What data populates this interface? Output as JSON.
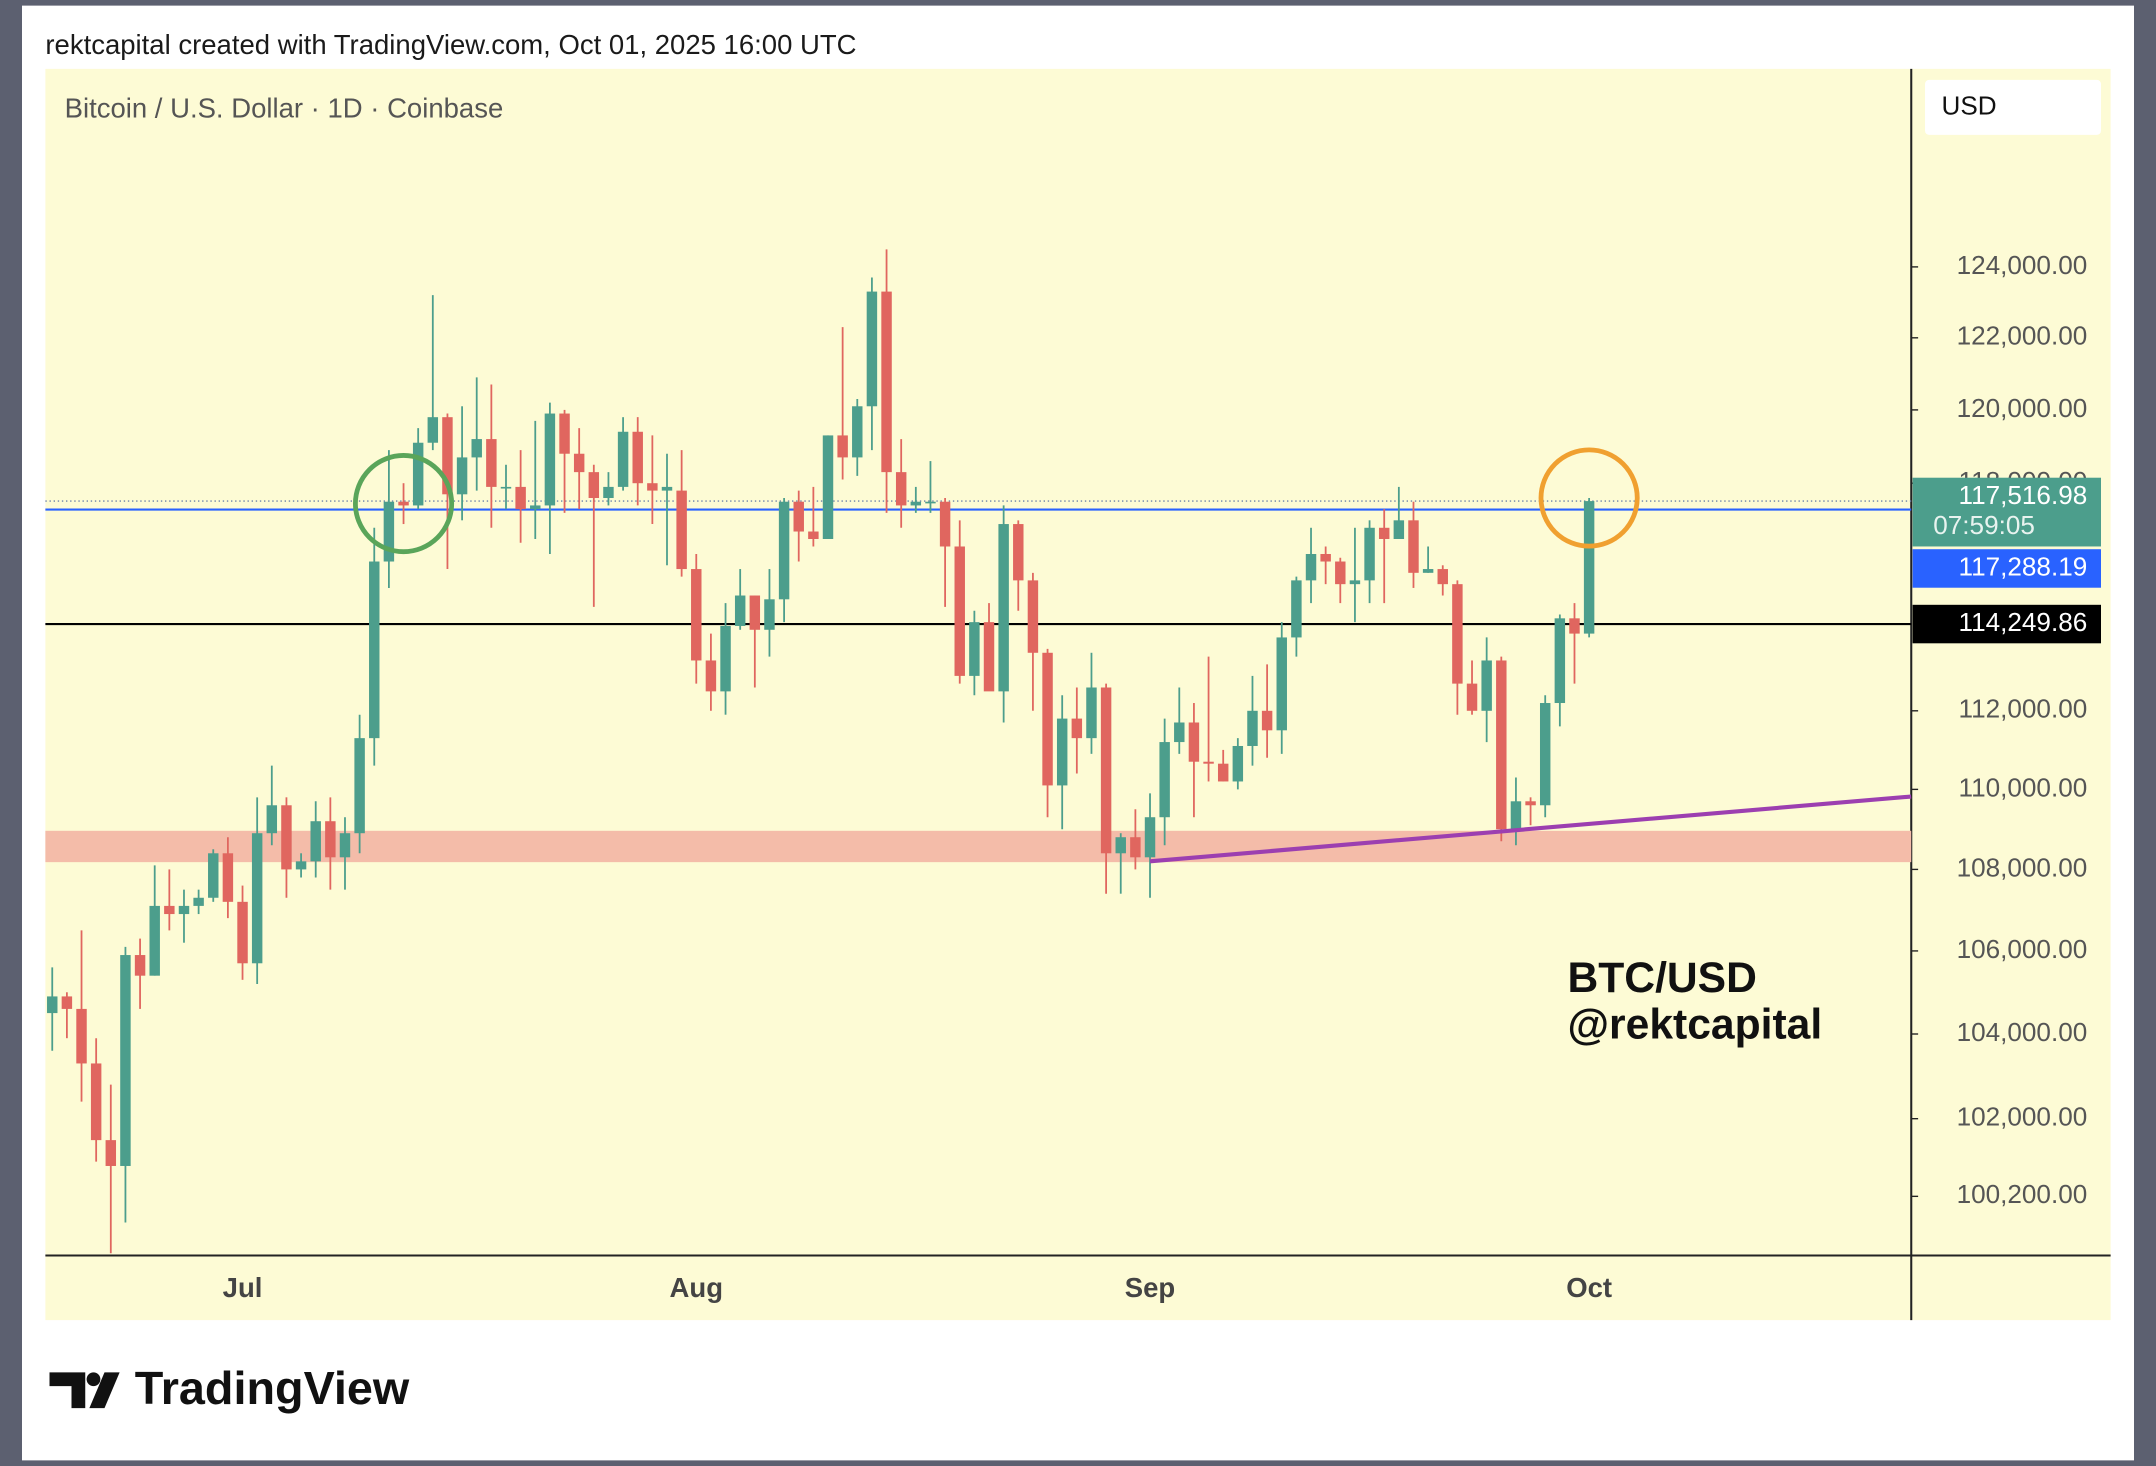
{
  "header": "rektcapital created with TradingView.com, Oct 01, 2025 16:00 UTC",
  "chart_data": {
    "type": "candlestick",
    "title": "Bitcoin / U.S. Dollar · 1D · Coinbase",
    "currency": "USD",
    "watermark": [
      "BTC/USD",
      "@rektcapital"
    ],
    "categories": [
      null,
      null,
      null,
      null,
      null,
      null,
      null,
      null,
      null,
      null,
      null,
      null,
      null,
      "Jul",
      null,
      null,
      null,
      null,
      null,
      null,
      null,
      null,
      null,
      null,
      null,
      null,
      null,
      null,
      null,
      null,
      null,
      null,
      null,
      null,
      null,
      null,
      null,
      null,
      null,
      null,
      null,
      null,
      null,
      null,
      "Aug",
      null,
      null,
      null,
      null,
      null,
      null,
      null,
      null,
      null,
      null,
      null,
      null,
      null,
      null,
      null,
      null,
      null,
      null,
      null,
      null,
      null,
      null,
      null,
      null,
      null,
      null,
      null,
      null,
      null,
      null,
      "Sep",
      null,
      null,
      null,
      null,
      null,
      null,
      null,
      null,
      null,
      null,
      null,
      null,
      null,
      null,
      null,
      null,
      null,
      null,
      null,
      null,
      null,
      null,
      null,
      null,
      null,
      null,
      null,
      null,
      null,
      "Oct"
    ],
    "open": [
      104500,
      104900,
      104600,
      103300,
      101500,
      100900,
      105900,
      105400,
      107100,
      106900,
      107100,
      107300,
      108400,
      107200,
      105700,
      108900,
      109600,
      108000,
      108200,
      109200,
      108300,
      108900,
      111300,
      115900,
      117500,
      117400,
      119100,
      119800,
      117700,
      118700,
      119200,
      117900,
      117900,
      117300,
      117400,
      119900,
      118800,
      118300,
      117600,
      117900,
      119400,
      118000,
      117800,
      117800,
      115700,
      113300,
      112500,
      114200,
      115000,
      114100,
      114900,
      117500,
      116700,
      116500,
      119300,
      118700,
      120100,
      123300,
      118300,
      117400,
      117500,
      117500,
      116300,
      112900,
      114300,
      112500,
      116900,
      115400,
      113500,
      110100,
      111800,
      111300,
      112600,
      108400,
      108800,
      108300,
      109300,
      111200,
      111700,
      110700,
      110650,
      110200,
      111100,
      112000,
      111500,
      113900,
      115400,
      116100,
      115900,
      115300,
      115400,
      116800,
      116500,
      117000,
      115600,
      115700,
      115300,
      112700,
      112000,
      113300,
      109000,
      109700,
      109600,
      112200,
      114400,
      114000
    ],
    "high": [
      105600,
      105000,
      106500,
      103900,
      102800,
      106100,
      106300,
      108100,
      108000,
      107500,
      107500,
      108500,
      108800,
      107600,
      109800,
      110600,
      109800,
      108400,
      109700,
      109800,
      109300,
      111900,
      116800,
      118900,
      118000,
      119500,
      123200,
      119900,
      120100,
      120900,
      120700,
      118500,
      118900,
      119700,
      120200,
      120000,
      119500,
      118500,
      118300,
      119800,
      119800,
      119300,
      118800,
      118900,
      116100,
      114000,
      114800,
      115700,
      115000,
      115700,
      117600,
      117800,
      117900,
      119300,
      122300,
      120300,
      123700,
      124500,
      119200,
      117900,
      118600,
      117600,
      117000,
      114600,
      114800,
      117400,
      117000,
      115600,
      113600,
      112400,
      112600,
      113500,
      112700,
      108900,
      109500,
      109900,
      111800,
      112600,
      112200,
      113400,
      111000,
      111300,
      112900,
      113200,
      114300,
      115500,
      116800,
      116300,
      116000,
      116800,
      117000,
      117300,
      117900,
      117500,
      116300,
      115800,
      115400,
      113300,
      113900,
      113400,
      110300,
      109800,
      112400,
      114500,
      114800,
      117600
    ],
    "low": [
      103600,
      103900,
      102400,
      101000,
      98900,
      99600,
      104600,
      105400,
      106500,
      106200,
      106900,
      107200,
      106800,
      105300,
      105200,
      108600,
      107300,
      107800,
      107800,
      107500,
      107500,
      108400,
      110600,
      115200,
      116900,
      117300,
      118900,
      115700,
      117000,
      117800,
      116800,
      117300,
      116400,
      116500,
      116100,
      117200,
      117300,
      114700,
      117400,
      117800,
      117400,
      116900,
      115800,
      115500,
      112700,
      112000,
      111900,
      114100,
      112600,
      113400,
      114300,
      115900,
      116300,
      116500,
      118100,
      118200,
      118900,
      117200,
      116800,
      117200,
      117200,
      114700,
      112700,
      112400,
      112600,
      111700,
      114600,
      112000,
      109300,
      109000,
      110400,
      110900,
      107400,
      107400,
      108000,
      107300,
      108600,
      110900,
      109300,
      110200,
      110200,
      110000,
      110600,
      110800,
      110900,
      113400,
      114800,
      115300,
      114800,
      114300,
      114800,
      114800,
      116500,
      115200,
      115600,
      115000,
      111900,
      111900,
      111200,
      108700,
      108600,
      109100,
      109300,
      111600,
      112700,
      113900
    ],
    "close": [
      104900,
      104600,
      103300,
      101500,
      100900,
      105900,
      105400,
      107100,
      106900,
      107100,
      107300,
      108400,
      107200,
      105700,
      108900,
      109600,
      108000,
      108200,
      109200,
      108300,
      108900,
      111300,
      115900,
      117500,
      117400,
      119100,
      119800,
      117700,
      118700,
      119200,
      117900,
      117900,
      117300,
      117400,
      119900,
      118800,
      118300,
      117600,
      117900,
      119400,
      118000,
      117800,
      117900,
      115700,
      113300,
      112500,
      114200,
      115000,
      114100,
      114900,
      117500,
      116700,
      116500,
      119300,
      118700,
      120100,
      123300,
      118300,
      117400,
      117500,
      117500,
      116300,
      112900,
      114300,
      112500,
      116900,
      115400,
      113500,
      110100,
      111800,
      111300,
      112600,
      108400,
      108800,
      108300,
      109300,
      111200,
      111700,
      110700,
      110650,
      110200,
      111100,
      112000,
      111500,
      113900,
      115400,
      116100,
      115900,
      115300,
      115400,
      116800,
      116500,
      117000,
      115600,
      115700,
      115300,
      112700,
      112000,
      113300,
      109000,
      109700,
      109600,
      112200,
      114400,
      114000,
      117516.98
    ],
    "up_color": "#4c9e8c",
    "down_color": "#e0665f",
    "log_scale": true,
    "grid": false,
    "ylim": [
      98850,
      129760
    ],
    "yticks": [
      {
        "value": 124000,
        "label": "124,000.00"
      },
      {
        "value": 122000,
        "label": "122,000.00"
      },
      {
        "value": 120000,
        "label": "120,000.00"
      },
      {
        "value": 118000,
        "label": "118,000.00"
      },
      {
        "value": 112000,
        "label": "112,000.00"
      },
      {
        "value": 110000,
        "label": "110,000.00"
      },
      {
        "value": 108000,
        "label": "108,000.00"
      },
      {
        "value": 106000,
        "label": "106,000.00"
      },
      {
        "value": 104000,
        "label": "104,000.00"
      },
      {
        "value": 102000,
        "label": "102,000.00"
      },
      {
        "value": 100200,
        "label": "100,200.00"
      }
    ],
    "zones": [
      {
        "from": 108180,
        "to": 108960,
        "color": "#f4bca9"
      }
    ],
    "trendline": {
      "x": [
        75,
        127
      ],
      "y": [
        108200,
        109820
      ],
      "color": "#9c3fb0"
    },
    "price_lines": [
      {
        "value": 117516.98,
        "label": "117,516.98",
        "countdown": "07:59:05",
        "color": "#4c9e8c",
        "style": "dotted"
      },
      {
        "value": 117288.19,
        "label": "117,288.19",
        "color": "#2962ff",
        "style": "solid"
      },
      {
        "value": 114249.86,
        "label": "114,249.86",
        "color": "#000000",
        "style": "solid"
      }
    ],
    "highlights": [
      {
        "x": 24,
        "value": 117450,
        "color": "#5aa55a"
      },
      {
        "x": 105,
        "value": 117600,
        "color": "#f0a030"
      }
    ]
  },
  "footer": {
    "logo": "TradingView"
  }
}
